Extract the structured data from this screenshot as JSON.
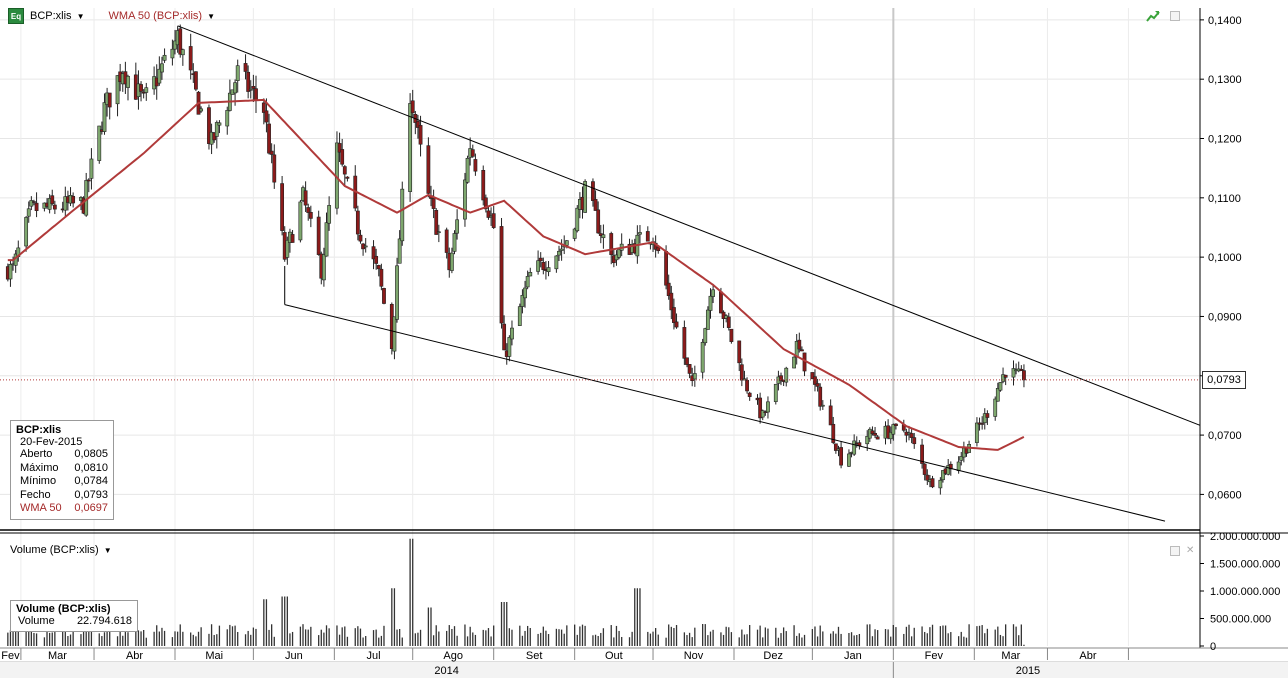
{
  "header": {
    "symbol": "BCP:xlis",
    "logo_text": "Eq",
    "indicator": "WMA 50 (BCP:xlis)",
    "trend_icon": "trend-up-icon",
    "caret_icon": "chevron-down-icon"
  },
  "info_box": {
    "title": "BCP:xlis",
    "date": "20-Fev-2015",
    "rows": [
      {
        "label": "Aberto",
        "value": "0,0805"
      },
      {
        "label": "Máximo",
        "value": "0,0810"
      },
      {
        "label": "Mínimo",
        "value": "0,0784"
      },
      {
        "label": "Fecho",
        "value": "0,0793"
      }
    ],
    "wma": {
      "label": "WMA 50",
      "value": "0,0697"
    }
  },
  "price_badge": "0,0793",
  "volume_panel": {
    "title": "Volume (BCP:xlis)",
    "box_title": "Volume (BCP:xlis)",
    "box_label": "Volume",
    "box_value": "22.794.618"
  },
  "colors": {
    "up": "#7ea76e",
    "down": "#8b1a1a",
    "wma": "#b03a3a",
    "trendline": "#000000",
    "last_price": "#b03a3a"
  },
  "chart_data": {
    "type": "candlestick",
    "ylim": [
      0.054,
      0.142
    ],
    "y_ticks": [
      "0,0600",
      "0,0700",
      "0,0800",
      "0,0900",
      "0,1000",
      "0,1100",
      "0,1200",
      "0,1300",
      "0,1400"
    ],
    "y_tick_values": [
      0.06,
      0.07,
      0.08,
      0.09,
      0.1,
      0.11,
      0.12,
      0.13,
      0.14
    ],
    "x_months": [
      "Fev",
      "Mar",
      "Abr",
      "Mai",
      "Jun",
      "Jul",
      "Ago",
      "Set",
      "Out",
      "Nov",
      "Dez",
      "Jan",
      "Fev",
      "Mar",
      "Abr"
    ],
    "x_years": [
      "2014",
      "2015"
    ],
    "grid": true,
    "last_close": 0.0793,
    "price_anchors": [
      {
        "date": "2014-01-29",
        "close": 0.098
      },
      {
        "date": "2014-02-05",
        "close": 0.108
      },
      {
        "date": "2014-02-25",
        "close": 0.109
      },
      {
        "date": "2014-03-05",
        "close": 0.125
      },
      {
        "date": "2014-03-12",
        "close": 0.132
      },
      {
        "date": "2014-03-20",
        "close": 0.126
      },
      {
        "date": "2014-04-02",
        "close": 0.137
      },
      {
        "date": "2014-04-15",
        "close": 0.119
      },
      {
        "date": "2014-04-25",
        "close": 0.131
      },
      {
        "date": "2014-05-05",
        "close": 0.125
      },
      {
        "date": "2014-05-13",
        "close": 0.1
      },
      {
        "date": "2014-05-20",
        "close": 0.11
      },
      {
        "date": "2014-05-27",
        "close": 0.098
      },
      {
        "date": "2014-06-02",
        "close": 0.118
      },
      {
        "date": "2014-06-10",
        "close": 0.105
      },
      {
        "date": "2014-06-18",
        "close": 0.097
      },
      {
        "date": "2014-06-23",
        "close": 0.085
      },
      {
        "date": "2014-06-30",
        "close": 0.128
      },
      {
        "date": "2014-07-07",
        "close": 0.11
      },
      {
        "date": "2014-07-15",
        "close": 0.098
      },
      {
        "date": "2014-07-23",
        "close": 0.119
      },
      {
        "date": "2014-08-01",
        "close": 0.105
      },
      {
        "date": "2014-08-05",
        "close": 0.083
      },
      {
        "date": "2014-08-15",
        "close": 0.097
      },
      {
        "date": "2014-08-28",
        "close": 0.102
      },
      {
        "date": "2014-09-05",
        "close": 0.111
      },
      {
        "date": "2014-09-15",
        "close": 0.1
      },
      {
        "date": "2014-10-01",
        "close": 0.104
      },
      {
        "date": "2014-10-10",
        "close": 0.088
      },
      {
        "date": "2014-10-16",
        "close": 0.078
      },
      {
        "date": "2014-10-24",
        "close": 0.096
      },
      {
        "date": "2014-11-05",
        "close": 0.079
      },
      {
        "date": "2014-11-12",
        "close": 0.073
      },
      {
        "date": "2014-11-25",
        "close": 0.085
      },
      {
        "date": "2014-12-05",
        "close": 0.075
      },
      {
        "date": "2014-12-12",
        "close": 0.066
      },
      {
        "date": "2014-12-22",
        "close": 0.07
      },
      {
        "date": "2015-01-06",
        "close": 0.071
      },
      {
        "date": "2015-01-15",
        "close": 0.062
      },
      {
        "date": "2015-01-26",
        "close": 0.066
      },
      {
        "date": "2015-02-05",
        "close": 0.073
      },
      {
        "date": "2015-02-13",
        "close": 0.081
      },
      {
        "date": "2015-02-20",
        "close": 0.0793
      }
    ],
    "wma_anchors": [
      {
        "date": "2014-01-29",
        "value": 0.0995
      },
      {
        "date": "2014-02-20",
        "value": 0.1075
      },
      {
        "date": "2014-03-20",
        "value": 0.1175
      },
      {
        "date": "2014-04-10",
        "value": 0.126
      },
      {
        "date": "2014-05-05",
        "value": 0.1265
      },
      {
        "date": "2014-06-05",
        "value": 0.112
      },
      {
        "date": "2014-06-25",
        "value": 0.1075
      },
      {
        "date": "2014-07-07",
        "value": 0.1105
      },
      {
        "date": "2014-07-23",
        "value": 0.1075
      },
      {
        "date": "2014-08-05",
        "value": 0.1095
      },
      {
        "date": "2014-08-20",
        "value": 0.1035
      },
      {
        "date": "2014-09-05",
        "value": 0.1005
      },
      {
        "date": "2014-10-01",
        "value": 0.1025
      },
      {
        "date": "2014-10-25",
        "value": 0.095
      },
      {
        "date": "2014-11-20",
        "value": 0.0845
      },
      {
        "date": "2014-12-15",
        "value": 0.0785
      },
      {
        "date": "2015-01-06",
        "value": 0.0715
      },
      {
        "date": "2015-01-26",
        "value": 0.068
      },
      {
        "date": "2015-02-10",
        "value": 0.0675
      },
      {
        "date": "2015-02-20",
        "value": 0.0697
      }
    ],
    "trendlines": [
      {
        "start": {
          "date": "2014-04-02",
          "value": 0.139
        },
        "end": {
          "date": "2015-05-01",
          "value": 0.0712
        }
      },
      {
        "start": {
          "date": "2014-05-13",
          "value": 0.092
        },
        "end": {
          "date": "2015-04-15",
          "value": 0.0555
        }
      },
      {
        "start": {
          "date": "2014-05-13",
          "value": 0.0985
        },
        "end": {
          "date": "2014-05-13",
          "value": 0.092
        }
      }
    ],
    "volume": {
      "ylim": [
        0,
        2000000000
      ],
      "y_ticks": [
        "0",
        "500.000.000",
        "1.000.000.000",
        "1.500.000.000",
        "2.000.000.000"
      ],
      "y_tick_values": [
        0,
        500000000,
        1000000000,
        1500000000,
        2000000000
      ],
      "peaks": [
        {
          "date": "2014-06-30",
          "value": 1950000000
        },
        {
          "date": "2014-06-23",
          "value": 1050000000
        },
        {
          "date": "2014-05-13",
          "value": 900000000
        },
        {
          "date": "2014-05-05",
          "value": 850000000
        },
        {
          "date": "2014-08-05",
          "value": 800000000
        },
        {
          "date": "2014-09-25",
          "value": 1050000000
        },
        {
          "date": "2014-07-07",
          "value": 700000000
        }
      ],
      "last_volume": 22794618
    }
  }
}
